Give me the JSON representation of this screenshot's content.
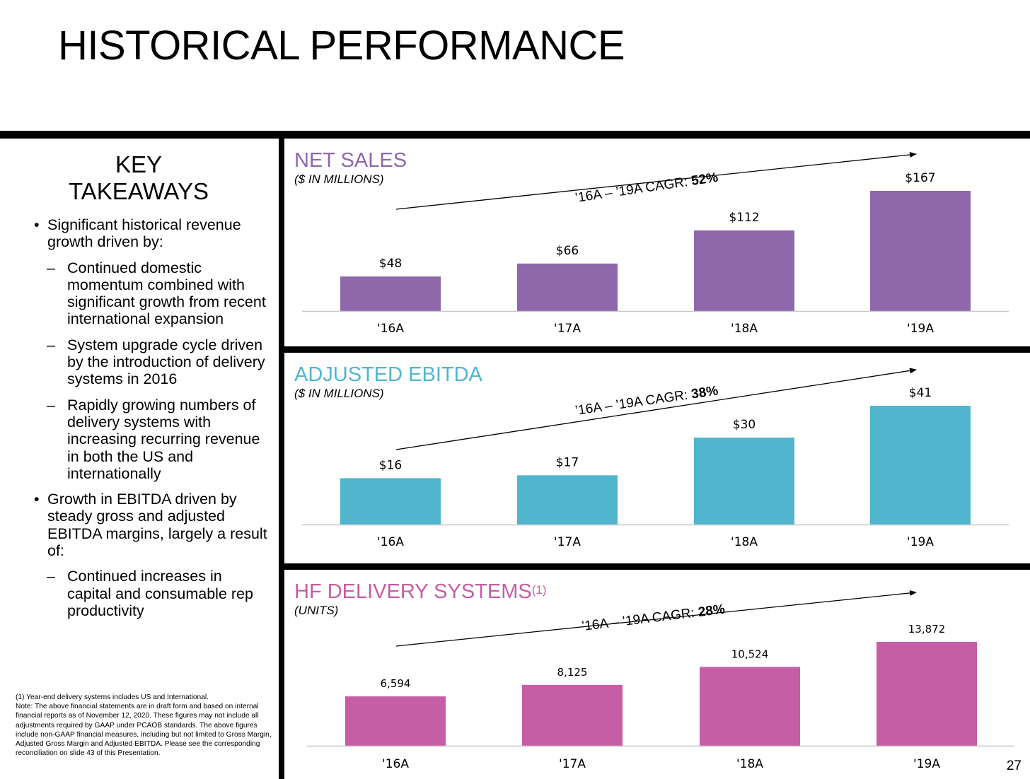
{
  "title": "HISTORICAL PERFORMANCE",
  "page_number": "27",
  "key_takeaways": {
    "title_line1": "KEY",
    "title_line2": "TAKEAWAYS",
    "items": [
      {
        "level": 0,
        "marker": "•",
        "text": "Significant historical revenue growth driven by:"
      },
      {
        "level": 1,
        "marker": "–",
        "text": "Continued domestic momentum combined with significant growth from recent international expansion"
      },
      {
        "level": 1,
        "marker": "–",
        "text": "System upgrade cycle driven by the introduction of delivery systems in 2016"
      },
      {
        "level": 1,
        "marker": "–",
        "text": "Rapidly growing numbers of delivery systems with increasing recurring revenue in both the US and internationally"
      },
      {
        "level": 0,
        "marker": "•",
        "text": "Growth in EBITDA driven by steady gross and adjusted EBITDA margins, largely a result of:"
      },
      {
        "level": 1,
        "marker": "–",
        "text": "Continued increases in capital and consumable rep productivity"
      }
    ]
  },
  "footnote": "(1) Year-end delivery systems includes US and International.\nNote: The above financial statements are in draft form and based on internal financial reports as of November 12, 2020. These figures may not include all adjustments required by GAAP under PCAOB standards. The above figures include non-GAAP financial measures, including but not limited to Gross Margin, Adjusted Gross Margin and Adjusted EBITDA.  Please see the corresponding reconciliation on slide 43 of this Presentation.",
  "chart_data": [
    {
      "type": "bar",
      "title": "NET SALES",
      "title_superscript": "",
      "subtitle": "($ IN MILLIONS)",
      "color": "#8E68AB",
      "categories": [
        "'16A",
        "'17A",
        "'18A",
        "'19A"
      ],
      "values": [
        48,
        66,
        112,
        167
      ],
      "value_labels": [
        "$48",
        "$66",
        "$112",
        "$167"
      ],
      "cagr_text": "’16A – ’19A CAGR: ",
      "cagr_value": "52%",
      "ylim": [
        0,
        167
      ]
    },
    {
      "type": "bar",
      "title": "ADJUSTED EBITDA",
      "title_superscript": "",
      "subtitle": "($ IN MILLIONS)",
      "color": "#4FB6CD",
      "categories": [
        "'16A",
        "'17A",
        "'18A",
        "'19A"
      ],
      "values": [
        16,
        17,
        30,
        41
      ],
      "value_labels": [
        "$16",
        "$17",
        "$30",
        "$41"
      ],
      "cagr_text": "’16A – ’19A CAGR: ",
      "cagr_value": "38%",
      "ylim": [
        0,
        41
      ]
    },
    {
      "type": "bar",
      "title": "HF DELIVERY SYSTEMS",
      "title_superscript": "(1)",
      "subtitle": "(UNITS)",
      "color": "#C55EA5",
      "categories": [
        "'16A",
        "'17A",
        "'18A",
        "'19A"
      ],
      "values": [
        6594,
        8125,
        10524,
        13872
      ],
      "value_labels": [
        "6,594",
        "8,125",
        "10,524",
        "13,872"
      ],
      "cagr_text": "’16A – ’19A CAGR: ",
      "cagr_value": "28%",
      "ylim": [
        0,
        13872
      ]
    }
  ]
}
